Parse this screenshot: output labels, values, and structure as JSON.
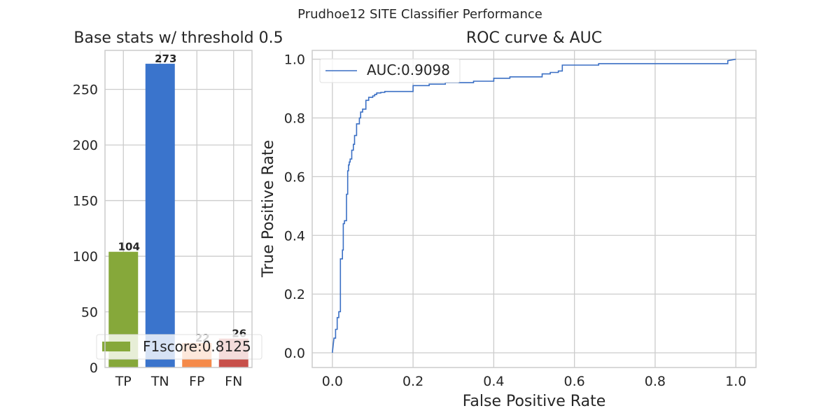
{
  "figure": {
    "suptitle": "Prudhoe12 SITE Classifier Performance"
  },
  "chart_data": [
    {
      "type": "bar",
      "title": "Base stats w/ threshold 0.5",
      "categories": [
        "TP",
        "TN",
        "FP",
        "FN"
      ],
      "values": [
        104,
        273,
        22,
        26
      ],
      "value_labels": [
        "104",
        "273",
        "22",
        "26"
      ],
      "colors": [
        "#86a83a",
        "#3a74cc",
        "#f58a4a",
        "#c8504a"
      ],
      "ylim": [
        0,
        285
      ],
      "yticks": [
        0,
        50,
        100,
        150,
        200,
        250
      ],
      "ytick_labels": [
        "0",
        "50",
        "100",
        "150",
        "200",
        "250"
      ],
      "grid": true,
      "legend": {
        "label": "F1score:0.8125",
        "color": "#86a83a",
        "placement": "lower-left"
      }
    },
    {
      "type": "line",
      "title": "ROC curve & AUC",
      "xlabel": "False Positive Rate",
      "ylabel": "True Positive Rate",
      "xlim": [
        -0.05,
        1.05
      ],
      "ylim": [
        -0.05,
        1.03
      ],
      "xticks": [
        0.0,
        0.2,
        0.4,
        0.6,
        0.8,
        1.0
      ],
      "xtick_labels": [
        "0.0",
        "0.2",
        "0.4",
        "0.6",
        "0.8",
        "1.0"
      ],
      "yticks": [
        0.0,
        0.2,
        0.4,
        0.6,
        0.8,
        1.0
      ],
      "ytick_labels": [
        "0.0",
        "0.2",
        "0.4",
        "0.6",
        "0.8",
        "1.0"
      ],
      "grid": true,
      "legend": {
        "placement": "top-left"
      },
      "series": [
        {
          "name": "AUC:0.9098",
          "color": "#3a6fc4",
          "x": [
            0,
            0.004,
            0.008,
            0.008,
            0.012,
            0.012,
            0.016,
            0.016,
            0.02,
            0.02,
            0.025,
            0.025,
            0.027,
            0.027,
            0.03,
            0.03,
            0.035,
            0.035,
            0.038,
            0.038,
            0.04,
            0.04,
            0.042,
            0.042,
            0.044,
            0.044,
            0.048,
            0.048,
            0.052,
            0.052,
            0.055,
            0.055,
            0.06,
            0.06,
            0.067,
            0.067,
            0.07,
            0.07,
            0.075,
            0.075,
            0.083,
            0.083,
            0.09,
            0.09,
            0.1,
            0.1,
            0.105,
            0.105,
            0.11,
            0.11,
            0.12,
            0.12,
            0.13,
            0.13,
            0.2,
            0.2,
            0.24,
            0.24,
            0.28,
            0.28,
            0.35,
            0.35,
            0.4,
            0.4,
            0.44,
            0.44,
            0.52,
            0.52,
            0.54,
            0.54,
            0.56,
            0.56,
            0.57,
            0.57,
            0.66,
            0.66,
            0.98,
            0.98,
            1.0
          ],
          "y": [
            0,
            0.05,
            0.05,
            0.08,
            0.08,
            0.12,
            0.12,
            0.14,
            0.14,
            0.32,
            0.32,
            0.35,
            0.35,
            0.44,
            0.44,
            0.45,
            0.45,
            0.54,
            0.54,
            0.62,
            0.62,
            0.64,
            0.64,
            0.65,
            0.65,
            0.66,
            0.66,
            0.69,
            0.69,
            0.71,
            0.71,
            0.74,
            0.74,
            0.78,
            0.78,
            0.8,
            0.8,
            0.82,
            0.82,
            0.83,
            0.83,
            0.86,
            0.86,
            0.87,
            0.87,
            0.875,
            0.875,
            0.88,
            0.88,
            0.885,
            0.885,
            0.887,
            0.887,
            0.89,
            0.89,
            0.91,
            0.91,
            0.915,
            0.915,
            0.92,
            0.92,
            0.925,
            0.925,
            0.935,
            0.935,
            0.94,
            0.94,
            0.95,
            0.95,
            0.955,
            0.955,
            0.96,
            0.96,
            0.98,
            0.98,
            0.985,
            0.985,
            0.995,
            1.0
          ]
        }
      ]
    }
  ]
}
